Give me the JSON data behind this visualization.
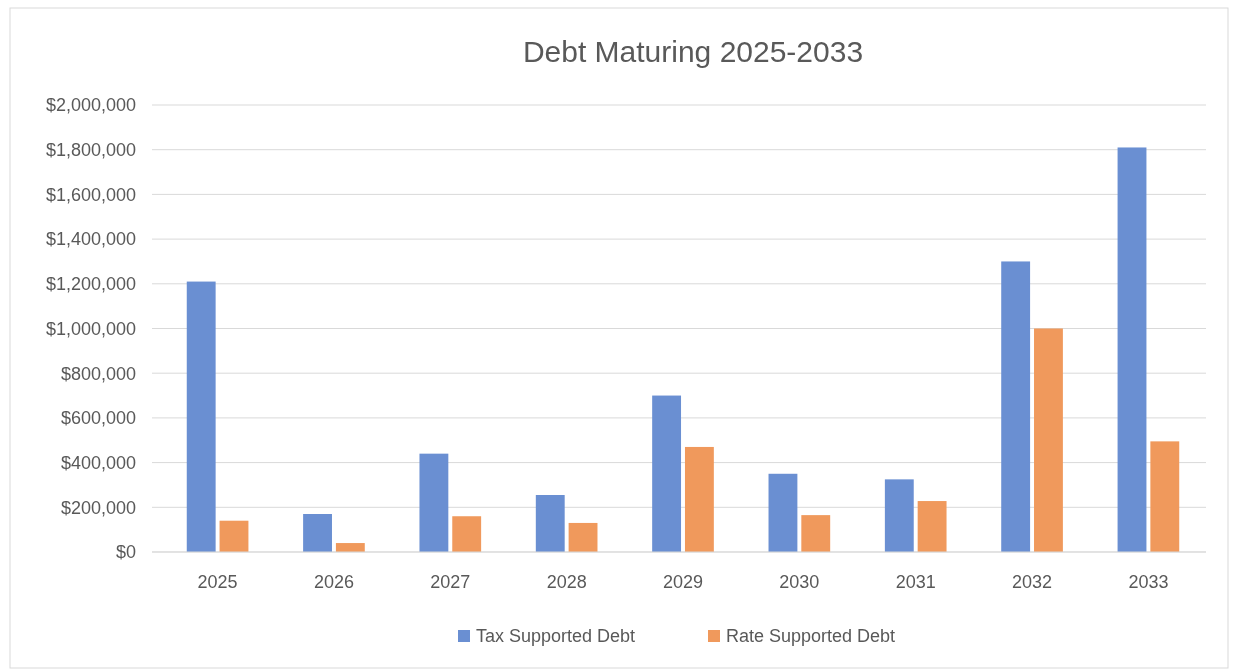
{
  "chart_data": {
    "type": "bar",
    "title": "Debt Maturing 2025-2033",
    "categories": [
      "2025",
      "2026",
      "2027",
      "2028",
      "2029",
      "2030",
      "2031",
      "2032",
      "2033"
    ],
    "series": [
      {
        "name": "Tax Supported Debt",
        "color": "#6a8fd2",
        "values": [
          1210000,
          170000,
          440000,
          255000,
          700000,
          350000,
          325000,
          1300000,
          1810000
        ]
      },
      {
        "name": "Rate Supported Debt",
        "color": "#f0995c",
        "values": [
          140000,
          40000,
          160000,
          130000,
          470000,
          165000,
          228000,
          1000000,
          495000
        ]
      }
    ],
    "ylim": [
      0,
      2000000
    ],
    "yticks": [
      {
        "value": 0,
        "label": "$0"
      },
      {
        "value": 200000,
        "label": "$200,000"
      },
      {
        "value": 400000,
        "label": "$400,000"
      },
      {
        "value": 600000,
        "label": "$600,000"
      },
      {
        "value": 800000,
        "label": "$800,000"
      },
      {
        "value": 1000000,
        "label": "$1,000,000"
      },
      {
        "value": 1200000,
        "label": "$1,200,000"
      },
      {
        "value": 1400000,
        "label": "$1,400,000"
      },
      {
        "value": 1600000,
        "label": "$1,600,000"
      },
      {
        "value": 1800000,
        "label": "$1,800,000"
      },
      {
        "value": 2000000,
        "label": "$2,000,000"
      }
    ],
    "grid": "y",
    "legend": "bottom"
  }
}
